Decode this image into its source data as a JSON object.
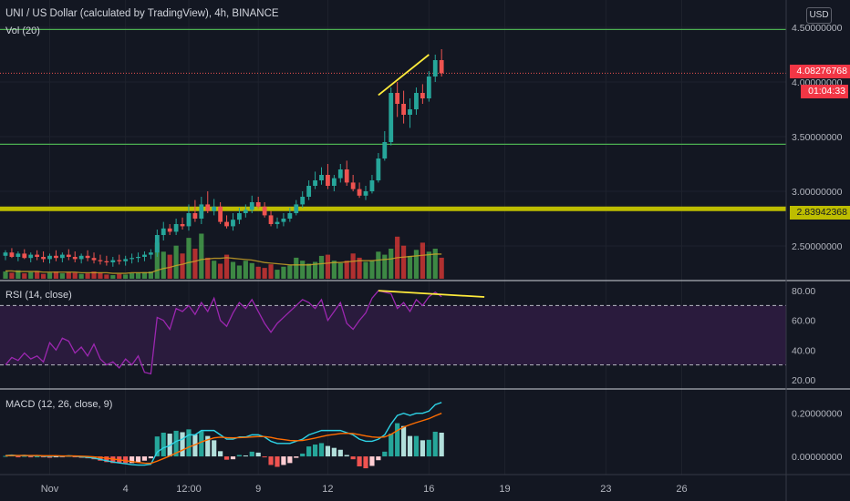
{
  "header": {
    "title": "UNI / US Dollar (calculated by TradingView), 4h, BINANCE",
    "volume_legend": "Vol (20)",
    "rsi_legend": "RSI (14, close)",
    "macd_legend": "MACD (12, 26, close, 9)",
    "currency_badge": "USD"
  },
  "price_tags": {
    "last_price": "4.08276768",
    "countdown": "01:04:33",
    "support_level": "2.83942368"
  },
  "colors": {
    "background": "#131722",
    "up": "#26a69a",
    "down": "#ef5350",
    "volume_up": "#4caf50",
    "volume_down": "#e53935",
    "horizontal_lines": "#4caf50",
    "support_band": "#bdbd00",
    "trendline": "#ffeb3b",
    "rsi_line": "#9c27b0",
    "rsi_band": "#2a1b3d",
    "macd_line": "#2ed3e6",
    "signal_line": "#ff6d00",
    "volume_ma": "#c9a227"
  },
  "chart_data": [
    {
      "type": "candlestick",
      "panel": "price",
      "ylim": [
        2.2,
        4.55
      ],
      "y_ticks": [
        {
          "value": 2.5,
          "label": "2.50000000"
        },
        {
          "value": 3.0,
          "label": "3.00000000"
        },
        {
          "value": 3.5,
          "label": "3.50000000"
        },
        {
          "value": 4.0,
          "label": "4.00000000"
        },
        {
          "value": 4.5,
          "label": "4.50000000"
        }
      ],
      "x_axis_labels": [
        {
          "label": "Nov",
          "bar": 7
        },
        {
          "label": "4",
          "bar": 19
        },
        {
          "label": "12:00",
          "bar": 29
        },
        {
          "label": "9",
          "bar": 40
        },
        {
          "label": "12",
          "bar": 51
        },
        {
          "label": "16",
          "bar": 67
        },
        {
          "label": "19",
          "bar": 79
        },
        {
          "label": "23",
          "bar": 95
        },
        {
          "label": "26",
          "bar": 107
        }
      ],
      "horizontal_lines": [
        4.48,
        3.43
      ],
      "support_band": 2.84,
      "last_price": 4.08,
      "trendline": [
        [
          59,
          3.88
        ],
        [
          67,
          4.25
        ]
      ],
      "open": [
        2.41,
        2.44,
        2.4,
        2.43,
        2.39,
        2.42,
        2.4,
        2.38,
        2.41,
        2.39,
        2.42,
        2.4,
        2.38,
        2.41,
        2.39,
        2.37,
        2.36,
        2.35,
        2.37,
        2.36,
        2.38,
        2.39,
        2.4,
        2.42,
        2.44,
        2.6,
        2.66,
        2.63,
        2.7,
        2.68,
        2.8,
        2.75,
        2.88,
        2.82,
        2.86,
        2.72,
        2.68,
        2.74,
        2.8,
        2.83,
        2.9,
        2.86,
        2.78,
        2.7,
        2.72,
        2.75,
        2.8,
        2.88,
        2.95,
        3.05,
        3.1,
        3.15,
        3.05,
        3.12,
        3.2,
        3.08,
        3.02,
        2.96,
        3.0,
        3.1,
        3.3,
        3.45,
        3.9,
        3.8,
        3.7,
        3.75,
        3.9,
        3.85,
        4.05,
        4.2
      ],
      "high": [
        2.46,
        2.48,
        2.45,
        2.47,
        2.44,
        2.46,
        2.45,
        2.43,
        2.46,
        2.44,
        2.47,
        2.45,
        2.43,
        2.46,
        2.44,
        2.42,
        2.41,
        2.4,
        2.42,
        2.41,
        2.43,
        2.44,
        2.45,
        2.47,
        2.65,
        2.72,
        2.7,
        2.75,
        2.76,
        2.88,
        2.92,
        2.95,
        3.0,
        2.93,
        2.9,
        2.78,
        2.8,
        2.85,
        2.88,
        2.96,
        2.95,
        2.9,
        2.82,
        2.76,
        2.8,
        2.85,
        2.92,
        3.0,
        3.1,
        3.18,
        3.22,
        3.25,
        3.15,
        3.25,
        3.28,
        3.15,
        3.08,
        3.05,
        3.15,
        3.35,
        3.55,
        3.95,
        4.0,
        3.92,
        3.85,
        3.95,
        3.98,
        4.1,
        4.25,
        4.3
      ],
      "low": [
        2.37,
        2.39,
        2.36,
        2.38,
        2.35,
        2.37,
        2.35,
        2.34,
        2.36,
        2.35,
        2.37,
        2.35,
        2.34,
        2.36,
        2.34,
        2.33,
        2.32,
        2.31,
        2.33,
        2.32,
        2.34,
        2.35,
        2.36,
        2.38,
        2.4,
        2.55,
        2.6,
        2.6,
        2.65,
        2.64,
        2.72,
        2.7,
        2.8,
        2.78,
        2.7,
        2.66,
        2.64,
        2.7,
        2.76,
        2.8,
        2.84,
        2.76,
        2.68,
        2.66,
        2.68,
        2.72,
        2.78,
        2.85,
        2.92,
        3.02,
        3.06,
        3.02,
        3.0,
        3.08,
        3.05,
        3.0,
        2.94,
        2.92,
        2.98,
        3.08,
        3.28,
        3.42,
        3.68,
        3.62,
        3.58,
        3.7,
        3.8,
        3.82,
        4.0,
        4.05
      ],
      "close": [
        2.44,
        2.4,
        2.43,
        2.39,
        2.42,
        2.4,
        2.38,
        2.41,
        2.39,
        2.42,
        2.4,
        2.38,
        2.41,
        2.39,
        2.37,
        2.36,
        2.35,
        2.37,
        2.36,
        2.38,
        2.39,
        2.4,
        2.42,
        2.44,
        2.6,
        2.66,
        2.63,
        2.7,
        2.68,
        2.8,
        2.75,
        2.88,
        2.82,
        2.86,
        2.72,
        2.68,
        2.74,
        2.8,
        2.83,
        2.9,
        2.86,
        2.78,
        2.7,
        2.72,
        2.75,
        2.8,
        2.88,
        2.95,
        3.05,
        3.1,
        3.15,
        3.05,
        3.12,
        3.2,
        3.08,
        3.02,
        2.96,
        3.0,
        3.1,
        3.3,
        3.45,
        3.9,
        3.8,
        3.7,
        3.75,
        3.9,
        3.85,
        4.05,
        4.2,
        4.08
      ]
    },
    {
      "type": "bar",
      "panel": "volume",
      "series_name": "Vol (20)",
      "ylim": [
        0,
        100
      ],
      "values": [
        12,
        10,
        14,
        9,
        11,
        13,
        8,
        10,
        12,
        9,
        11,
        10,
        8,
        9,
        12,
        10,
        7,
        6,
        8,
        7,
        9,
        10,
        11,
        12,
        60,
        45,
        40,
        55,
        42,
        68,
        50,
        75,
        35,
        30,
        25,
        40,
        28,
        22,
        30,
        26,
        20,
        18,
        24,
        15,
        20,
        22,
        35,
        30,
        25,
        28,
        38,
        40,
        30,
        26,
        30,
        42,
        35,
        28,
        30,
        45,
        40,
        50,
        70,
        55,
        38,
        48,
        60,
        45,
        50,
        35
      ],
      "ma": [
        13,
        13,
        12,
        12,
        12,
        12,
        11,
        11,
        11,
        11,
        11,
        11,
        10,
        10,
        10,
        10,
        10,
        9,
        9,
        9,
        10,
        10,
        10,
        10,
        14,
        17,
        19,
        22,
        24,
        27,
        29,
        32,
        33,
        34,
        34,
        35,
        34,
        33,
        32,
        31,
        29,
        27,
        26,
        25,
        24,
        23,
        23,
        23,
        23,
        24,
        25,
        26,
        27,
        27,
        28,
        29,
        30,
        30,
        30,
        31,
        32,
        33,
        35,
        36,
        37,
        38,
        39,
        40,
        41,
        41
      ]
    },
    {
      "type": "line",
      "panel": "rsi",
      "series_name": "RSI (14, close)",
      "ylim": [
        15,
        85
      ],
      "y_ticks": [
        20,
        40,
        60,
        80
      ],
      "y_tick_labels": [
        "20.00",
        "40.00",
        "60.00",
        "80.00"
      ],
      "band": [
        30,
        70
      ],
      "values": [
        30,
        35,
        33,
        38,
        34,
        36,
        32,
        45,
        40,
        48,
        46,
        38,
        42,
        36,
        44,
        34,
        30,
        32,
        28,
        34,
        30,
        36,
        25,
        24,
        62,
        60,
        54,
        68,
        66,
        70,
        64,
        72,
        66,
        75,
        60,
        56,
        65,
        72,
        68,
        74,
        66,
        58,
        52,
        58,
        62,
        66,
        70,
        74,
        72,
        68,
        74,
        60,
        66,
        72,
        58,
        54,
        60,
        65,
        75,
        80,
        79,
        78,
        68,
        72,
        66,
        74,
        70,
        76,
        79,
        76
      ],
      "trendline": [
        [
          59,
          80
        ],
        [
          70,
          77
        ]
      ]
    },
    {
      "type": "line",
      "panel": "macd",
      "series_name": "MACD (12, 26, close, 9)",
      "ylim": [
        -0.08,
        0.3
      ],
      "y_ticks": [
        0.0,
        0.2
      ],
      "y_tick_labels": [
        "0.00000000",
        "0.20000000"
      ],
      "macd": [
        0.004,
        0.006,
        0.003,
        0.005,
        0.002,
        0.004,
        0.001,
        0.0,
        0.002,
        0.0,
        0.003,
        0.001,
        -0.002,
        -0.004,
        -0.008,
        -0.014,
        -0.02,
        -0.026,
        -0.03,
        -0.034,
        -0.038,
        -0.04,
        -0.04,
        -0.036,
        0.02,
        0.04,
        0.05,
        0.07,
        0.08,
        0.1,
        0.1,
        0.12,
        0.12,
        0.12,
        0.1,
        0.08,
        0.08,
        0.09,
        0.09,
        0.1,
        0.1,
        0.09,
        0.07,
        0.06,
        0.06,
        0.06,
        0.07,
        0.08,
        0.1,
        0.11,
        0.12,
        0.12,
        0.12,
        0.12,
        0.11,
        0.1,
        0.08,
        0.07,
        0.07,
        0.08,
        0.1,
        0.15,
        0.19,
        0.2,
        0.19,
        0.2,
        0.2,
        0.21,
        0.24,
        0.25
      ],
      "signal": [
        0.003,
        0.004,
        0.004,
        0.004,
        0.004,
        0.004,
        0.003,
        0.003,
        0.003,
        0.002,
        0.002,
        0.002,
        0.001,
        0.0,
        -0.002,
        -0.005,
        -0.008,
        -0.012,
        -0.016,
        -0.02,
        -0.024,
        -0.028,
        -0.031,
        -0.032,
        -0.022,
        -0.01,
        0.002,
        0.016,
        0.029,
        0.043,
        0.054,
        0.067,
        0.077,
        0.086,
        0.089,
        0.087,
        0.086,
        0.087,
        0.088,
        0.09,
        0.092,
        0.092,
        0.088,
        0.082,
        0.078,
        0.074,
        0.073,
        0.074,
        0.079,
        0.085,
        0.092,
        0.098,
        0.102,
        0.106,
        0.107,
        0.106,
        0.101,
        0.095,
        0.09,
        0.088,
        0.09,
        0.102,
        0.12,
        0.136,
        0.147,
        0.157,
        0.166,
        0.175,
        0.188,
        0.2
      ]
    }
  ]
}
